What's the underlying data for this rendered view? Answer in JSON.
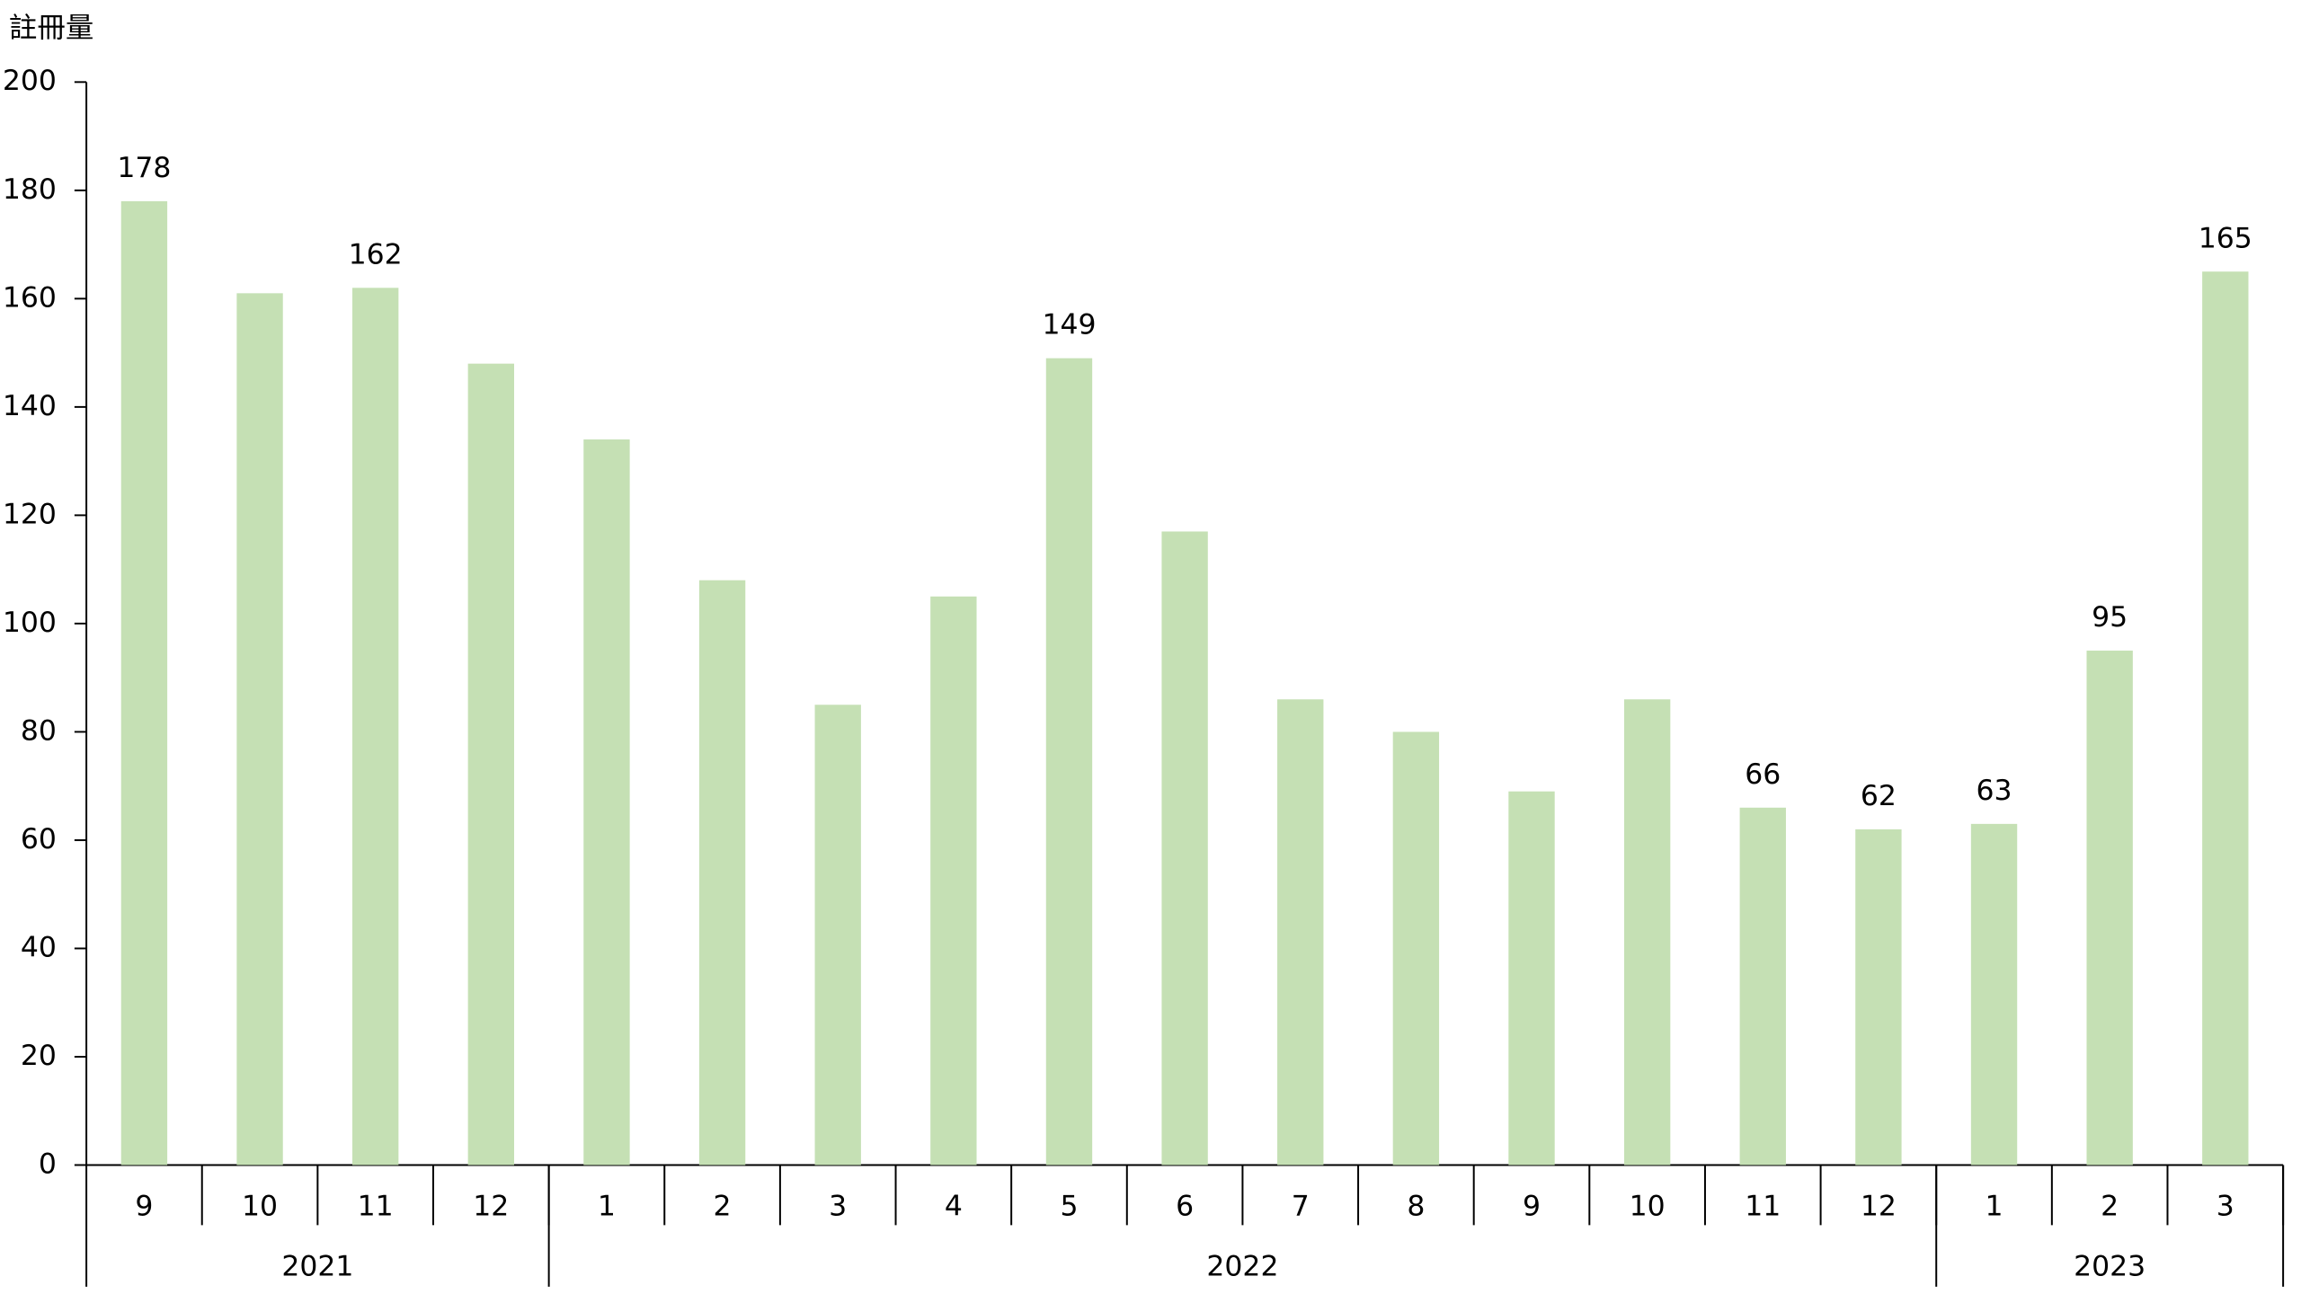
{
  "chart_data": {
    "type": "bar",
    "y_axis_label": "註冊量",
    "categories": [
      "9",
      "10",
      "11",
      "12",
      "1",
      "2",
      "3",
      "4",
      "5",
      "6",
      "7",
      "8",
      "9",
      "10",
      "11",
      "12",
      "1",
      "2",
      "3"
    ],
    "x_groups": [
      {
        "label": "2021",
        "span": 4
      },
      {
        "label": "2022",
        "span": 12
      },
      {
        "label": "2023",
        "span": 3
      }
    ],
    "values": [
      178,
      161,
      162,
      148,
      134,
      108,
      85,
      105,
      149,
      117,
      86,
      80,
      69,
      86,
      66,
      62,
      63,
      95,
      165
    ],
    "value_labels": [
      "178",
      null,
      "162",
      null,
      null,
      null,
      null,
      null,
      "149",
      null,
      null,
      null,
      null,
      null,
      "66",
      "62",
      "63",
      "95",
      "165"
    ],
    "color": "#c5e0b4",
    "ylim": [
      0,
      200
    ],
    "yticks": [
      0,
      20,
      40,
      60,
      80,
      100,
      120,
      140,
      160,
      180,
      200
    ],
    "grid": false
  }
}
